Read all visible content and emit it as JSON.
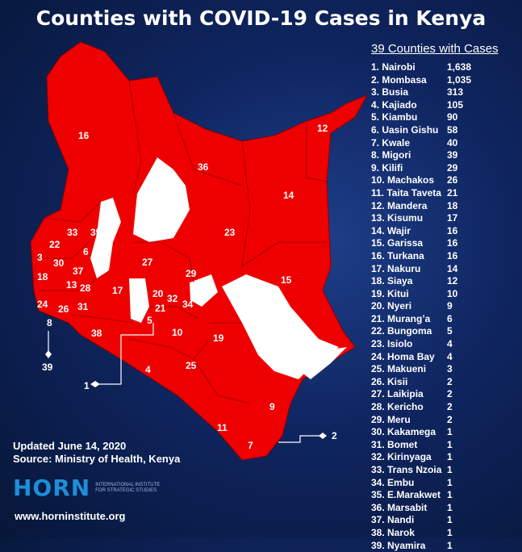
{
  "title": "Counties with COVID-19 Cases in Kenya",
  "list_heading": "39 Counties with Cases",
  "counties": [
    {
      "label": "1. Nairobi",
      "cases": "1,638"
    },
    {
      "label": "2. Mombasa",
      "cases": "1,035"
    },
    {
      "label": "3. Busia",
      "cases": "313"
    },
    {
      "label": "4. Kajiado",
      "cases": "105"
    },
    {
      "label": "5. Kiambu",
      "cases": "90"
    },
    {
      "label": "6. Uasin Gishu",
      "cases": "58"
    },
    {
      "label": "7. Kwale",
      "cases": "40"
    },
    {
      "label": "8. Migori",
      "cases": "39"
    },
    {
      "label": "9. Kilifi",
      "cases": "29"
    },
    {
      "label": "10. Machakos",
      "cases": "26"
    },
    {
      "label": "11. Taita Taveta",
      "cases": "21"
    },
    {
      "label": "12. Mandera",
      "cases": "18"
    },
    {
      "label": "13. Kisumu",
      "cases": "17"
    },
    {
      "label": "14. Wajir",
      "cases": "16"
    },
    {
      "label": "15. Garissa",
      "cases": "16"
    },
    {
      "label": "16. Turkana",
      "cases": "16"
    },
    {
      "label": "17. Nakuru",
      "cases": "14"
    },
    {
      "label": "18. Siaya",
      "cases": "12"
    },
    {
      "label": "19. Kitui",
      "cases": "10"
    },
    {
      "label": "20. Nyeri",
      "cases": "9"
    },
    {
      "label": "21. Murang’a",
      "cases": "6"
    },
    {
      "label": "22. Bungoma",
      "cases": "5"
    },
    {
      "label": "23. Isiolo",
      "cases": "4"
    },
    {
      "label": "24. Homa Bay",
      "cases": "4"
    },
    {
      "label": "25. Makueni",
      "cases": "3"
    },
    {
      "label": "26. Kisii",
      "cases": "2"
    },
    {
      "label": "27. Laikipia",
      "cases": "2"
    },
    {
      "label": "28. Kericho",
      "cases": "2"
    },
    {
      "label": "29. Meru",
      "cases": "2"
    },
    {
      "label": "30. Kakamega",
      "cases": "1"
    },
    {
      "label": "31. Bomet",
      "cases": "1"
    },
    {
      "label": "32. Kirinyaga",
      "cases": "1"
    },
    {
      "label": "33. Trans Nzoia",
      "cases": "1"
    },
    {
      "label": "34. Embu",
      "cases": "1"
    },
    {
      "label": "35. E.Marakwet",
      "cases": "1"
    },
    {
      "label": "36. Marsabit",
      "cases": "1"
    },
    {
      "label": "37. Nandi",
      "cases": "1"
    },
    {
      "label": "38. Narok",
      "cases": "1"
    },
    {
      "label": "39. Nyamira",
      "cases": "1"
    }
  ],
  "map_labels": [
    "1",
    "2",
    "3",
    "4",
    "5",
    "6",
    "7",
    "8",
    "9",
    "10",
    "11",
    "12",
    "13",
    "14",
    "15",
    "16",
    "17",
    "18",
    "19",
    "20",
    "21",
    "22",
    "23",
    "24",
    "25",
    "26",
    "27",
    "28",
    "29",
    "30",
    "31",
    "32",
    "33",
    "34",
    "35",
    "36",
    "37",
    "38",
    "39"
  ],
  "updated": "Updated June 14, 2020",
  "source": "Source: Ministry of Health, Kenya",
  "logo_word": "HORN",
  "logo_subtitle": "International Institute for Strategic Studies",
  "website": "www.horninstitute.org",
  "colors": {
    "affected": "#ee0000",
    "unaffected": "#ffffff",
    "background": "#0f2560",
    "logo": "#1c8fd8"
  }
}
